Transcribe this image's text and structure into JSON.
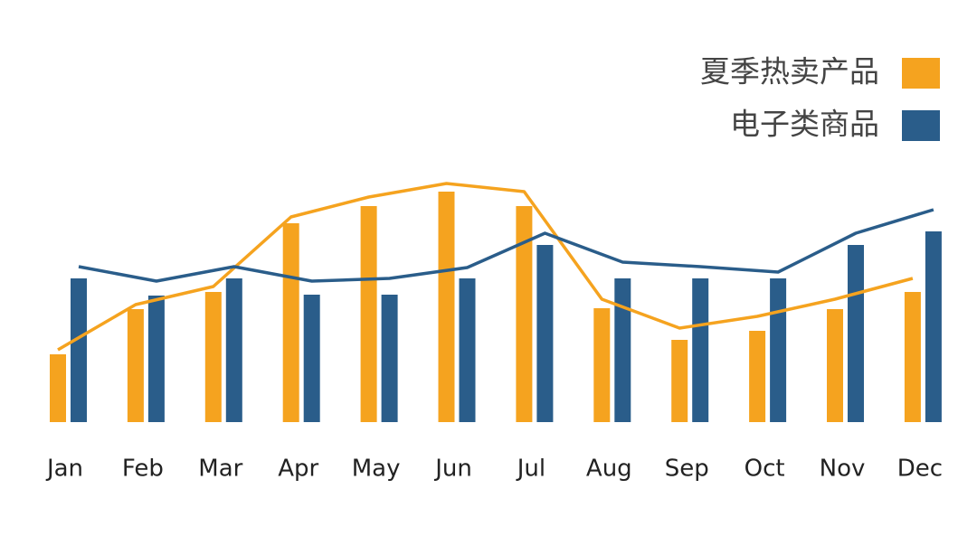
{
  "chart_data": {
    "type": "bar_line",
    "categories": [
      "Jan",
      "Feb",
      "Mar",
      "Apr",
      "May",
      "Jun",
      "Jul",
      "Aug",
      "Sep",
      "Oct",
      "Nov",
      "Dec"
    ],
    "series": [
      {
        "name": "夏季热卖产品",
        "color": "#f5a31f",
        "values": [
          75,
          125,
          144,
          220,
          239,
          255,
          239,
          126,
          91,
          101,
          125,
          144
        ],
        "line_values": [
          80,
          130,
          150,
          227,
          249,
          264,
          255,
          136,
          104,
          117,
          136,
          159
        ]
      },
      {
        "name": "电子类商品",
        "color": "#2a5d8a",
        "values": [
          159,
          140,
          159,
          141,
          141,
          159,
          196,
          159,
          159,
          159,
          196,
          211
        ],
        "line_values": [
          172,
          156,
          172,
          156,
          159,
          171,
          209,
          177,
          172,
          166,
          209,
          235
        ]
      }
    ],
    "ylim": [
      0,
      300
    ],
    "legend": "top-right"
  }
}
